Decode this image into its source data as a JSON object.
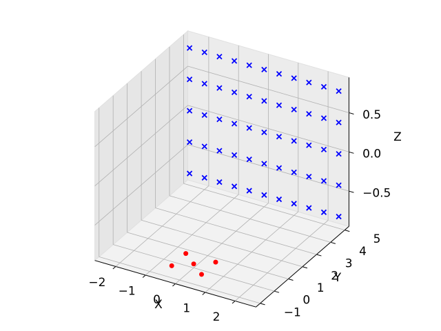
{
  "chart_data": {
    "type": "scatter3d",
    "xlabel": "X",
    "ylabel": "Y",
    "zlabel": "Z",
    "xlim": [
      -2.7,
      2.7
    ],
    "ylim": [
      -1.3,
      5.3
    ],
    "zlim": [
      -0.95,
      0.95
    ],
    "xticks": [
      {
        "value": -2,
        "label": "−2"
      },
      {
        "value": -1,
        "label": "−1"
      },
      0,
      1,
      2
    ],
    "yticks": [
      {
        "value": -1,
        "label": "−1"
      },
      0,
      1,
      2,
      3,
      4,
      5
    ],
    "zticks": [
      {
        "value": -0.5,
        "label": "−0.5"
      },
      {
        "value": 0,
        "label": "0.0"
      },
      0.5
    ],
    "grid": true,
    "series": [
      {
        "color": "#ff0000",
        "marker": "o",
        "x": [
          -0.5,
          0.5,
          0,
          -0.5,
          0.5
        ],
        "y": [
          -0.5,
          -0.5,
          0,
          0.5,
          0.5
        ],
        "z": [
          -0.9,
          -0.9,
          -0.9,
          -0.9,
          -0.9
        ]
      },
      {
        "color": "#0000ff",
        "marker": "x",
        "x": [
          -2.5,
          -2,
          -1.5,
          -1,
          -0.5,
          0,
          0.5,
          1,
          1.5,
          2,
          2.5,
          -2.5,
          -2,
          -1.5,
          -1,
          -0.5,
          0,
          0.5,
          1,
          1.5,
          2,
          2.5,
          -2.5,
          -2,
          -1.5,
          -1,
          -0.5,
          0,
          0.5,
          1,
          1.5,
          2,
          2.5,
          -2.5,
          -2,
          -1.5,
          -1,
          -0.5,
          0,
          0.5,
          1,
          1.5,
          2,
          2.5,
          -2.5,
          -2,
          -1.5,
          -1,
          -0.5,
          0,
          0.5,
          1,
          1.5,
          2,
          2.5
        ],
        "y": [
          5,
          5,
          5,
          5,
          5,
          5,
          5,
          5,
          5,
          5,
          5,
          5,
          5,
          5,
          5,
          5,
          5,
          5,
          5,
          5,
          5,
          5,
          5,
          5,
          5,
          5,
          5,
          5,
          5,
          5,
          5,
          5,
          5,
          5,
          5,
          5,
          5,
          5,
          5,
          5,
          5,
          5,
          5,
          5,
          5,
          5,
          5,
          5,
          5,
          5,
          5,
          5,
          5,
          5,
          5
        ],
        "z": [
          -0.8,
          -0.8,
          -0.8,
          -0.8,
          -0.8,
          -0.8,
          -0.8,
          -0.8,
          -0.8,
          -0.8,
          -0.8,
          -0.4,
          -0.4,
          -0.4,
          -0.4,
          -0.4,
          -0.4,
          -0.4,
          -0.4,
          -0.4,
          -0.4,
          -0.4,
          0,
          0,
          0,
          0,
          0,
          0,
          0,
          0,
          0,
          0,
          0,
          0.4,
          0.4,
          0.4,
          0.4,
          0.4,
          0.4,
          0.4,
          0.4,
          0.4,
          0.4,
          0.4,
          0.8,
          0.8,
          0.8,
          0.8,
          0.8,
          0.8,
          0.8,
          0.8,
          0.8,
          0.8,
          0.8
        ]
      }
    ]
  }
}
